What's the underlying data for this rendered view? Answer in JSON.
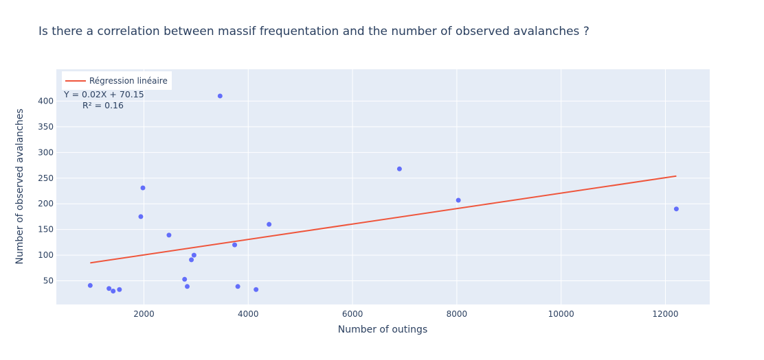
{
  "chart_data": {
    "type": "scatter",
    "title": "Is there a correlation between massif frequentation and the number of observed avalanches ?",
    "xlabel": "Number of outings",
    "ylabel": "Number of observed avalanches",
    "xlim": [
      320,
      12850
    ],
    "ylim": [
      4,
      462
    ],
    "x_ticks": [
      2000,
      4000,
      6000,
      8000,
      10000,
      12000
    ],
    "y_ticks": [
      50,
      100,
      150,
      200,
      250,
      300,
      350,
      400
    ],
    "grid": true,
    "legend_position": "top-left",
    "colors": {
      "points": "#636efa",
      "regression": "#ef553b",
      "plot_bg": "#e5ecf6",
      "text": "#2a3f5f",
      "grid": "#ffffff"
    },
    "series": [
      {
        "kind": "points",
        "x": [
          970,
          1330,
          1410,
          1530,
          1940,
          1980,
          2480,
          2780,
          2830,
          2910,
          2960,
          3460,
          3740,
          3800,
          4150,
          4400,
          6900,
          8030,
          12210
        ],
        "y": [
          41,
          35,
          30,
          33,
          175,
          231,
          139,
          53,
          39,
          91,
          100,
          410,
          120,
          39,
          33,
          160,
          268,
          207,
          190
        ]
      },
      {
        "kind": "line",
        "name": "Régression linéaire",
        "x": [
          970,
          12210
        ],
        "y": [
          85,
          254
        ]
      }
    ],
    "annotation": {
      "line1": "Y = 0.02X + 70.15",
      "line2": "R² = 0.16"
    }
  }
}
